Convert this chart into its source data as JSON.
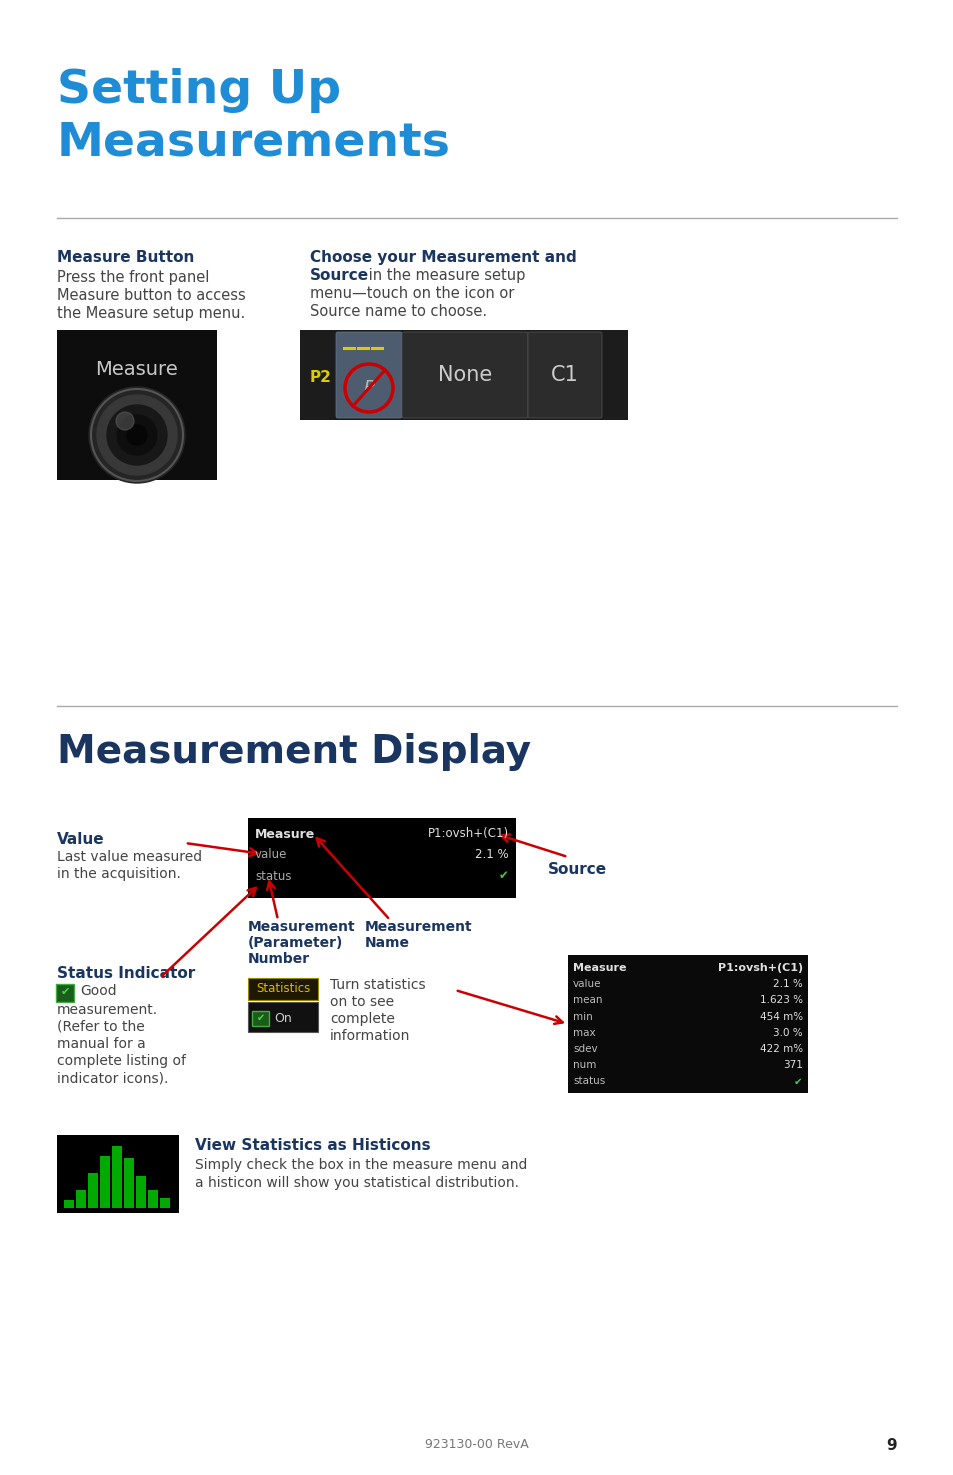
{
  "title1_line1": "Setting Up",
  "title1_line2": "Measurements",
  "title1_color": "#1f8dd6",
  "title2": "Measurement Display",
  "title2_color": "#1a3560",
  "heading_color": "#1a3560",
  "body_color": "#444444",
  "label_color": "#1a3560",
  "arrow_color": "#cc0000",
  "line_color": "#aaaaaa",
  "bg_color": "#ffffff",
  "section1_h1": "Measure Button",
  "section1_b1_1": "Press the front panel",
  "section1_b1_2": "Measure button to access",
  "section1_b1_3": "the Measure setup menu.",
  "section1_h2_bold": "Choose your Measurement and",
  "section1_h2_bold2": "Source",
  "section1_h2_rest": " in the measure setup",
  "section1_b2_2": "menu—touch on the icon or",
  "section1_b2_3": "Source name to choose.",
  "value_label": "Value",
  "value_body1": "Last value measured",
  "value_body2": "in the acquisition.",
  "source_label": "Source",
  "meas_param": "Measurement",
  "meas_param2": "(Parameter)",
  "meas_param3": "Number",
  "meas_name": "Measurement",
  "meas_name2": "Name",
  "status_label": "Status Indicator",
  "status_body1": "measurement.",
  "status_body2": "(Refer to the",
  "status_body3": "manual for a",
  "status_body4": "complete listing of",
  "status_body5": "indicator icons).",
  "stats_turn1": "Turn statistics",
  "stats_turn2": "on to see",
  "stats_turn3": "complete",
  "stats_turn4": "information",
  "histicon_heading": "View Statistics as Histicons",
  "histicon_body1": "Simply check the box in the measure menu and",
  "histicon_body2": "a histicon will show you statistical distribution.",
  "footer_text": "923130-00 RevA",
  "footer_page": "9",
  "measure_screen_rows": [
    "Measure",
    "value",
    "status"
  ],
  "measure_screen_p1": "P1:ovsh+(C1)",
  "measure_screen_val": "2.1 %",
  "stats_rows": [
    [
      "Measure",
      "P1:ovsh+(C1)"
    ],
    [
      "value",
      "2.1 %"
    ],
    [
      "mean",
      "1.623 %"
    ],
    [
      "min",
      "454 m%"
    ],
    [
      "max",
      "3.0 %"
    ],
    [
      "sdev",
      "422 m%"
    ],
    [
      "num",
      "371"
    ],
    [
      "status",
      "✔"
    ]
  ]
}
